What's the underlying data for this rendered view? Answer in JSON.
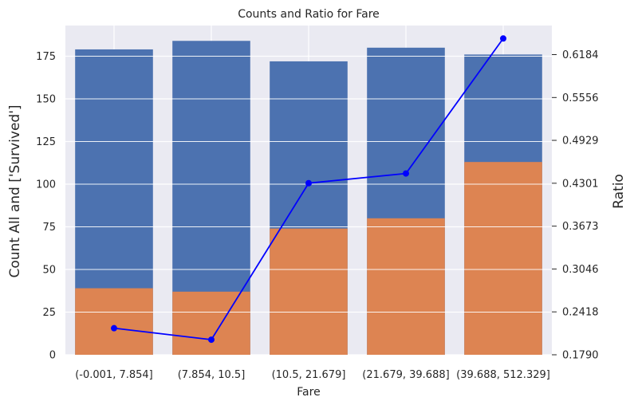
{
  "chart_data": {
    "type": "bar",
    "title": "Counts and Ratio for Fare",
    "xlabel": "Fare",
    "ylabel": "Count All and ['Survived']",
    "y2label": "Ratio",
    "categories": [
      "(-0.001, 7.854]",
      "(7.854, 10.5]",
      "(10.5, 21.679]",
      "(21.679, 39.688]",
      "(39.688, 512.329]"
    ],
    "series": [
      {
        "name": "All",
        "type": "bar",
        "color": "#4c72b0",
        "values": [
          179,
          184,
          172,
          180,
          176
        ]
      },
      {
        "name": "Survived",
        "type": "bar",
        "color": "#dd8452",
        "values": [
          39,
          37,
          74,
          80,
          113
        ]
      },
      {
        "name": "Ratio",
        "type": "line",
        "axis": "right",
        "color": "#0000ff",
        "values": [
          0.2179,
          0.2011,
          0.4302,
          0.4444,
          0.642
        ]
      }
    ],
    "ylim": [
      0,
      193
    ],
    "y_ticks": [
      0,
      25,
      50,
      75,
      100,
      125,
      150,
      175
    ],
    "y2lim": [
      0.179,
      0.661
    ],
    "y2_ticks": [
      "0.1790",
      "0.2418",
      "0.3046",
      "0.3673",
      "0.4301",
      "0.4929",
      "0.5556",
      "0.6184"
    ],
    "grid": true,
    "legend": "none",
    "colors": {
      "background": "#eaeaf2",
      "grid": "#ffffff",
      "ratio_label": "#0000ff"
    }
  }
}
